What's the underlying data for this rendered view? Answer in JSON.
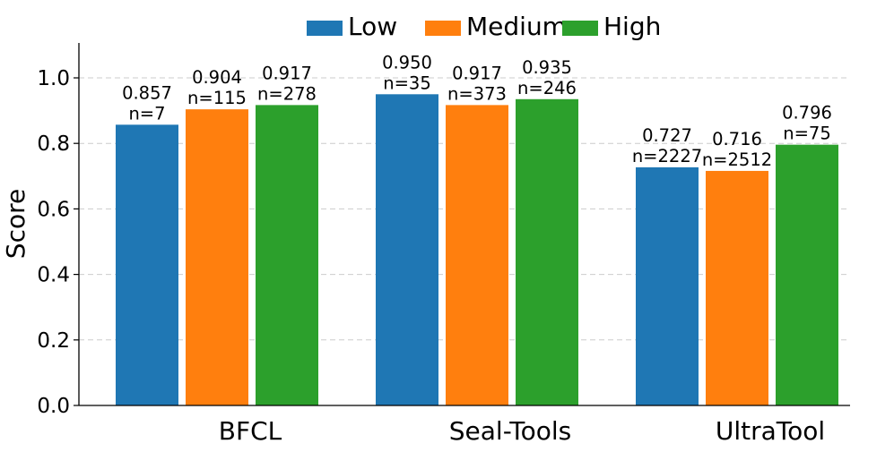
{
  "chart_data": {
    "type": "bar",
    "ylabel": "Score",
    "xlabel": "",
    "ylim": [
      0,
      1.1
    ],
    "yticks": [
      "0.0",
      "0.2",
      "0.4",
      "0.6",
      "0.8",
      "1.0"
    ],
    "grid": "horizontal-dashed",
    "legend_position": "top-center",
    "categories": [
      "BFCL",
      "Seal-Tools",
      "UltraTool"
    ],
    "series": [
      {
        "name": "Low",
        "color": "#1f77b4",
        "values": [
          0.857,
          0.95,
          0.727
        ],
        "labels": [
          "0.857",
          "0.950",
          "0.727"
        ],
        "n_labels": [
          "n=7",
          "n=35",
          "n=2227"
        ]
      },
      {
        "name": "Medium",
        "color": "#ff7f0e",
        "values": [
          0.904,
          0.917,
          0.716
        ],
        "labels": [
          "0.904",
          "0.917",
          "0.716"
        ],
        "n_labels": [
          "n=115",
          "n=373",
          "n=2512"
        ]
      },
      {
        "name": "High",
        "color": "#2ca02c",
        "values": [
          0.917,
          0.935,
          0.796
        ],
        "labels": [
          "0.917",
          "0.935",
          "0.796"
        ],
        "n_labels": [
          "n=278",
          "n=246",
          "n=75"
        ]
      }
    ]
  }
}
